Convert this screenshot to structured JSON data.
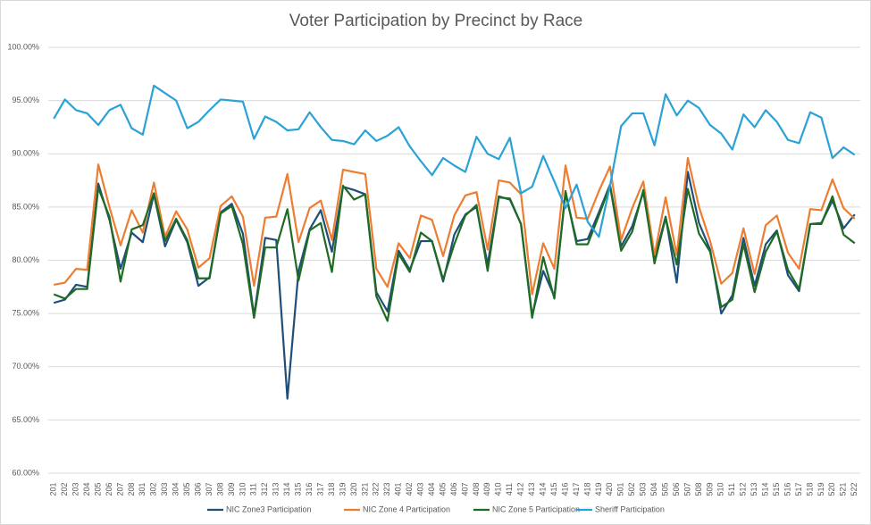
{
  "chart_data": {
    "type": "line",
    "title": "Voter Participation by Precinct by Race",
    "categories": [
      "201",
      "202",
      "203",
      "204",
      "205",
      "206",
      "207",
      "208",
      "301",
      "302",
      "303",
      "304",
      "305",
      "306",
      "307",
      "308",
      "309",
      "310",
      "311",
      "312",
      "313",
      "314",
      "315",
      "316",
      "317",
      "318",
      "319",
      "320",
      "321",
      "322",
      "323",
      "401",
      "402",
      "403",
      "404",
      "405",
      "406",
      "407",
      "408",
      "409",
      "410",
      "411",
      "412",
      "413",
      "414",
      "415",
      "416",
      "417",
      "418",
      "419",
      "420",
      "501",
      "502",
      "503",
      "504",
      "505",
      "506",
      "507",
      "508",
      "509",
      "510",
      "511",
      "512",
      "513",
      "514",
      "515",
      "516",
      "517",
      "518",
      "519",
      "520",
      "521",
      "522"
    ],
    "series": [
      {
        "name": "NIC Zone3 Participation",
        "color": "#1f4e79",
        "values": [
          76.0,
          76.3,
          77.7,
          77.5,
          87.2,
          83.8,
          79.2,
          82.6,
          81.7,
          86.2,
          81.3,
          83.8,
          81.7,
          77.6,
          78.4,
          84.5,
          85.3,
          82.5,
          74.8,
          82.1,
          81.9,
          67.0,
          79.0,
          82.9,
          84.7,
          80.8,
          86.9,
          86.6,
          86.2,
          77.0,
          75.2,
          80.9,
          79.1,
          81.8,
          81.8,
          78.0,
          82.4,
          84.3,
          85.0,
          79.6,
          86.0,
          85.7,
          83.4,
          74.8,
          79.0,
          76.6,
          86.3,
          81.8,
          82.0,
          84.5,
          87.1,
          81.3,
          83.2,
          86.4,
          80.1,
          84.1,
          77.9,
          88.3,
          83.5,
          81.0,
          75.0,
          76.7,
          82.1,
          77.6,
          81.5,
          82.8,
          78.6,
          77.1,
          83.4,
          83.5,
          85.6,
          83.0,
          84.3
        ]
      },
      {
        "name": "NIC Zone 4 Participation",
        "color": "#ed7d31",
        "values": [
          77.7,
          77.9,
          79.2,
          79.1,
          89.0,
          85.0,
          81.4,
          84.7,
          82.6,
          87.3,
          82.2,
          84.6,
          82.9,
          79.3,
          80.2,
          85.1,
          86.0,
          84.1,
          77.6,
          84.0,
          84.1,
          88.1,
          81.7,
          84.9,
          85.6,
          81.9,
          88.5,
          88.3,
          88.1,
          79.2,
          77.5,
          81.6,
          80.2,
          84.2,
          83.8,
          80.4,
          84.2,
          86.1,
          86.4,
          81.0,
          87.5,
          87.3,
          86.2,
          76.8,
          81.6,
          79.2,
          88.9,
          84.0,
          83.9,
          86.5,
          88.8,
          81.9,
          84.9,
          87.4,
          80.5,
          85.9,
          80.5,
          89.6,
          85.0,
          81.8,
          77.8,
          78.8,
          83.0,
          78.7,
          83.3,
          84.2,
          80.7,
          79.2,
          84.8,
          84.7,
          87.6,
          84.9,
          83.9
        ]
      },
      {
        "name": "NIC Zone 5 Participation",
        "color": "#1e6b24",
        "values": [
          76.8,
          76.4,
          77.3,
          77.3,
          86.8,
          84.1,
          78.0,
          82.9,
          83.3,
          86.3,
          81.8,
          83.9,
          81.9,
          78.3,
          78.3,
          84.4,
          85.1,
          81.5,
          74.6,
          81.2,
          81.2,
          84.8,
          78.1,
          82.8,
          83.5,
          78.9,
          87.0,
          85.7,
          86.2,
          76.6,
          74.3,
          80.6,
          78.9,
          82.6,
          81.8,
          78.2,
          81.5,
          84.2,
          85.2,
          79.0,
          85.9,
          85.8,
          83.4,
          74.6,
          80.3,
          76.4,
          86.5,
          81.5,
          81.5,
          84.2,
          87.0,
          80.9,
          82.7,
          86.6,
          79.7,
          84.0,
          79.6,
          86.7,
          82.5,
          80.8,
          75.6,
          76.3,
          81.5,
          77.0,
          80.8,
          82.7,
          79.1,
          77.3,
          83.4,
          83.4,
          86.0,
          82.4,
          81.6
        ]
      },
      {
        "name": "Sheriff Participation",
        "color": "#2aa2d6",
        "values": [
          93.3,
          95.1,
          94.1,
          93.8,
          92.7,
          94.1,
          94.6,
          92.4,
          91.8,
          96.4,
          95.7,
          95.0,
          92.4,
          93.0,
          94.1,
          95.1,
          95.0,
          94.9,
          91.4,
          93.5,
          93.0,
          92.2,
          92.3,
          93.9,
          92.5,
          91.3,
          91.2,
          90.9,
          92.2,
          91.2,
          91.7,
          92.5,
          90.7,
          89.3,
          88.0,
          89.6,
          88.9,
          88.3,
          91.6,
          90.0,
          89.5,
          91.5,
          86.3,
          86.9,
          89.8,
          87.4,
          84.9,
          87.1,
          83.6,
          82.2,
          87.0,
          92.6,
          93.8,
          93.8,
          90.8,
          95.6,
          93.6,
          95.0,
          94.3,
          92.7,
          91.9,
          90.4,
          93.7,
          92.5,
          94.1,
          93.0,
          91.3,
          91.0,
          93.9,
          93.4,
          89.6,
          90.6,
          89.9
        ]
      }
    ],
    "ylim": [
      60,
      100
    ],
    "yticks": [
      {
        "value": 60,
        "label": "60.00%"
      },
      {
        "value": 65,
        "label": "65.00%"
      },
      {
        "value": 70,
        "label": "70.00%"
      },
      {
        "value": 75,
        "label": "75.00%"
      },
      {
        "value": 80,
        "label": "80.00%"
      },
      {
        "value": 85,
        "label": "85.00%"
      },
      {
        "value": 90,
        "label": "90.00%"
      },
      {
        "value": 95,
        "label": "95.00%"
      },
      {
        "value": 100,
        "label": "100.00%"
      }
    ],
    "grid": true,
    "legend": "bottom"
  }
}
